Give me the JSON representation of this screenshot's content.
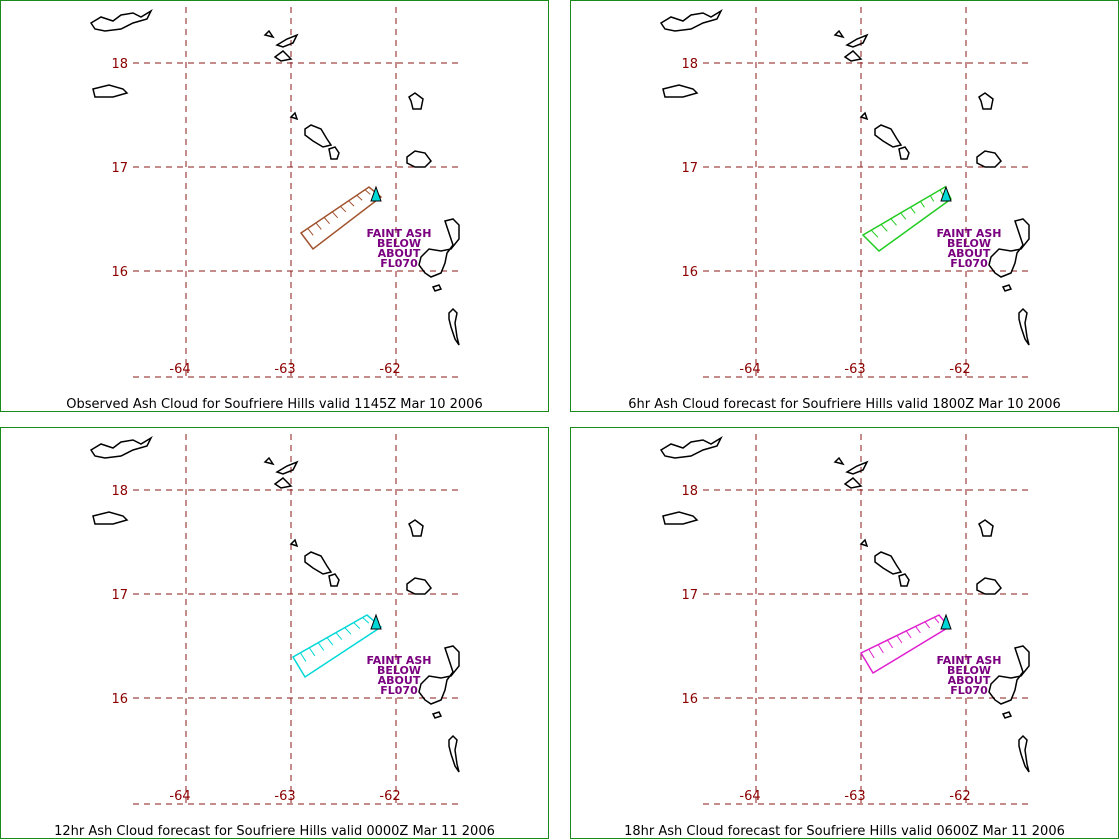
{
  "colors": {
    "frame": "#1a8a1a",
    "grid": "#8b1a1a",
    "coast": "#000000",
    "label": "#8b0000",
    "annotation": "#7a0080",
    "volcano": "#00d8d8"
  },
  "grid": {
    "lat_labels": [
      "18",
      "17",
      "16"
    ],
    "lon_labels": [
      "-64",
      "-63",
      "-62"
    ]
  },
  "panels": [
    {
      "caption": "Observed Ash Cloud for Soufriere  Hills valid 1145Z Mar 10 2006",
      "cloud_color": "#a0522d",
      "annotation": [
        "FAINT ASH",
        "BELOW",
        "ABOUT",
        "FL070"
      ]
    },
    {
      "caption": "6hr Ash Cloud forecast for Soufriere  Hills valid 1800Z Mar 10 2006",
      "cloud_color": "#22cc22",
      "annotation": [
        "FAINT ASH",
        "BELOW",
        "ABOUT",
        "FL070"
      ]
    },
    {
      "caption": "12hr Ash Cloud forecast for Soufriere  Hills valid 0000Z Mar 11 2006",
      "cloud_color": "#00d8d8",
      "annotation": [
        "FAINT ASH",
        "BELOW",
        "ABOUT",
        "FL070"
      ]
    },
    {
      "caption": "18hr Ash Cloud forecast for Soufriere  Hills valid 0600Z Mar 11 2006",
      "cloud_color": "#e020d0",
      "annotation": [
        "FAINT ASH",
        "BELOW",
        "ABOUT",
        "FL070"
      ]
    }
  ]
}
